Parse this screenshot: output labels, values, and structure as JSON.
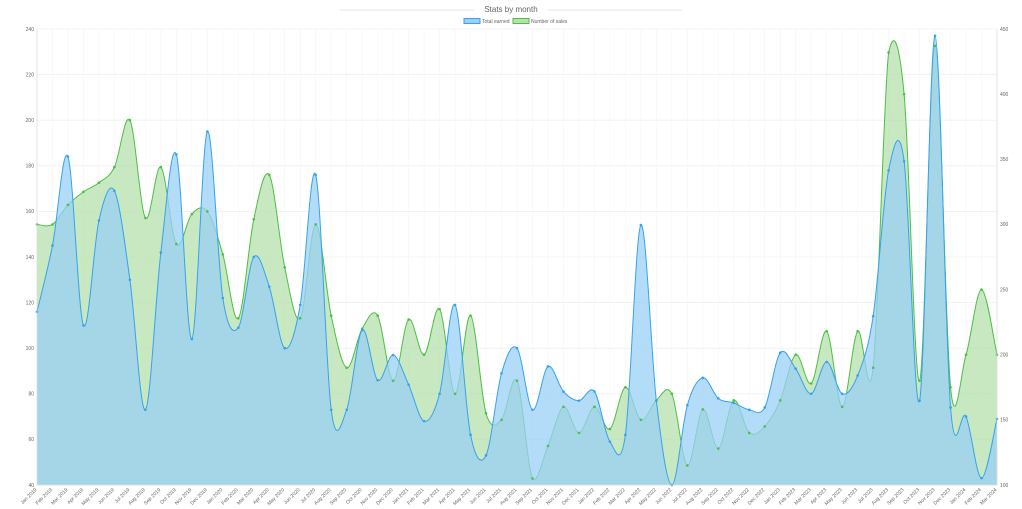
{
  "chart_data": {
    "type": "area",
    "title": "Stats by month",
    "categories": [
      "Jan 2019",
      "Feb 2019",
      "Mar 2019",
      "Apr 2019",
      "May 2019",
      "Jun 2019",
      "Jul 2019",
      "Aug 2019",
      "Sep 2019",
      "Oct 2019",
      "Nov 2019",
      "Dec 2019",
      "Jan 2020",
      "Feb 2020",
      "Mar 2020",
      "Apr 2020",
      "May 2020",
      "Jun 2020",
      "Jul 2020",
      "Aug 2020",
      "Sep 2020",
      "Oct 2020",
      "Nov 2020",
      "Dec 2020",
      "Jan 2021",
      "Feb 2021",
      "Mar 2021",
      "Apr 2021",
      "May 2021",
      "Jun 2021",
      "Jul 2021",
      "Aug 2021",
      "Sep 2021",
      "Oct 2021",
      "Nov 2021",
      "Dec 2021",
      "Jan 2022",
      "Feb 2022",
      "Mar 2022",
      "Apr 2022",
      "May 2022",
      "Jun 2022",
      "Jul 2022",
      "Aug 2022",
      "Sep 2022",
      "Oct 2022",
      "Nov 2022",
      "Dec 2022",
      "Jan 2023",
      "Feb 2023",
      "Mar 2023",
      "Apr 2023",
      "May 2023",
      "Jun 2023",
      "Jul 2023",
      "Aug 2023",
      "Sep 2023",
      "Oct 2023",
      "Nov 2023",
      "Dec 2023",
      "Jan 2024",
      "Feb 2024",
      "Mar 2024"
    ],
    "left_axis": {
      "min": 40,
      "max": 240,
      "ticks": [
        40,
        60,
        80,
        100,
        120,
        140,
        160,
        180,
        200,
        220,
        240
      ]
    },
    "right_axis": {
      "min": 100,
      "max": 450,
      "ticks": [
        100,
        150,
        200,
        250,
        300,
        350,
        400,
        450
      ]
    },
    "legend_position": "top",
    "grid": true,
    "series": [
      {
        "name": "Total earned",
        "axis": "left",
        "line_color": "#36a2eb",
        "fill_color": "#9ad0f5",
        "values": [
          116,
          145,
          184,
          110,
          156,
          169,
          130,
          73,
          142,
          185,
          104,
          195,
          122,
          109,
          140,
          127,
          100,
          119,
          176,
          73,
          73,
          108,
          86,
          97,
          84,
          68,
          80,
          119,
          62,
          53,
          89,
          100,
          73,
          92,
          81,
          77,
          81,
          59,
          62,
          154,
          77,
          40,
          75,
          87,
          78,
          76,
          73,
          74,
          98,
          91,
          80,
          94,
          80,
          88,
          114,
          178,
          182,
          77,
          237,
          74,
          70,
          43,
          69
        ]
      },
      {
        "name": "Number of sales",
        "axis": "right",
        "line_color": "#4bc042",
        "fill_color": "#b4e0ab",
        "values": [
          300,
          300,
          315,
          325,
          332,
          344,
          380,
          305,
          344,
          285,
          308,
          310,
          277,
          228,
          304,
          338,
          267,
          228,
          300,
          230,
          190,
          220,
          230,
          180,
          227,
          200,
          235,
          170,
          230,
          155,
          150,
          180,
          105,
          130,
          160,
          140,
          160,
          143,
          175,
          150,
          165,
          170,
          115,
          158,
          128,
          165,
          140,
          145,
          165,
          200,
          178,
          218,
          160,
          218,
          190,
          432,
          400,
          180,
          437,
          175,
          200,
          250,
          200
        ]
      }
    ]
  }
}
